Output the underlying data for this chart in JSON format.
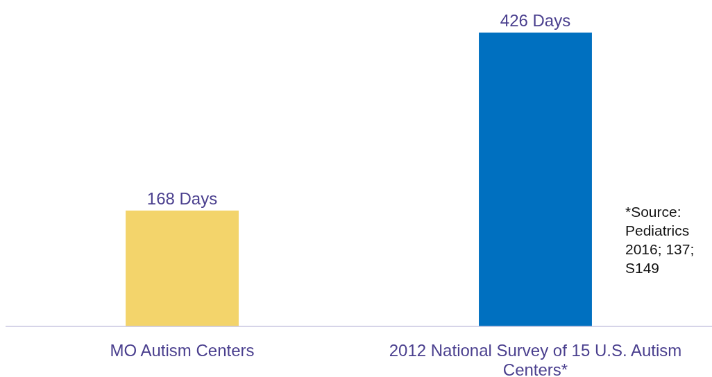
{
  "chart_data": {
    "type": "bar",
    "categories": [
      "MO Autism Centers",
      "2012 National Survey of 15 U.S. Autism Centers*"
    ],
    "values": [
      168,
      426
    ],
    "colors": [
      "#f3d46b",
      "#0070c0"
    ],
    "value_labels": [
      "168 Days",
      "426 Days"
    ],
    "annotations": [
      "*Source: Pediatrics 2016; 137; S149"
    ]
  }
}
